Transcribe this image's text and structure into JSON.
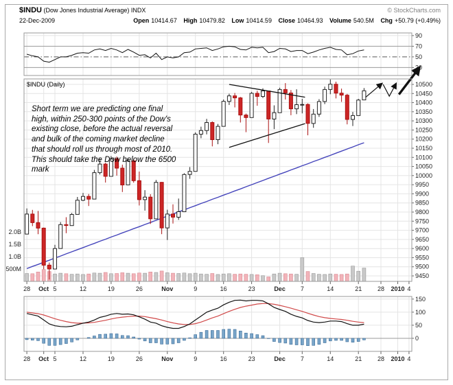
{
  "header": {
    "symbol": "$INDU",
    "name": "(Dow Jones Industrial Average) INDX",
    "date": "22-Dec-2009",
    "copyright": "© StockCharts.com",
    "quote": [
      {
        "label": "Open",
        "value": "10414.67"
      },
      {
        "label": "High",
        "value": "10479.82"
      },
      {
        "label": "Low",
        "value": "10414.59"
      },
      {
        "label": "Close",
        "value": "10464.93"
      },
      {
        "label": "Volume",
        "value": "540.5M"
      },
      {
        "label": "Chg",
        "value": "+50.79 (+0.49%)"
      }
    ]
  },
  "main_label": "$INDU (Daily)",
  "annotation": "Short term we are predicting one final\nhigh, within 250-300 points of the Dow's\nexisting close, before the actual reversal\nand bulk of the coming market decline\nthat should roll us through most of 2010.\nThis should take the Dow below the 6500\nmark",
  "colors": {
    "up_stroke": "#222222",
    "up_fill": "#ffffff",
    "down_stroke": "#aa1111",
    "down_fill": "#cc2626",
    "ma": "#4444bb",
    "vol_up_fill": "#c9c9c9",
    "vol_up_stroke": "#9a9a9a",
    "vol_down_fill": "#f2b4ba",
    "vol_down_stroke": "#d98890",
    "rsi_line": "#111111",
    "macd_line": "#111111",
    "signal_line": "#d04848",
    "hist_fill": "#79a5c9",
    "hist_stroke": "#3c6d99",
    "grid": "#e4e4e4",
    "panel_border": "#999999",
    "annotation_ink": "#111111"
  },
  "chart_data": {
    "type": "candlestick",
    "title": "$INDU (Dow Jones Industrial Average) INDX - Daily",
    "x_total_slots": 69,
    "x_ticks": [
      {
        "label": "28",
        "i": 0,
        "bold": false
      },
      {
        "label": "Oct",
        "i": 3,
        "bold": true
      },
      {
        "label": "5",
        "i": 5,
        "bold": false
      },
      {
        "label": "12",
        "i": 10,
        "bold": false
      },
      {
        "label": "19",
        "i": 15,
        "bold": false
      },
      {
        "label": "26",
        "i": 20,
        "bold": false
      },
      {
        "label": "Nov",
        "i": 25,
        "bold": true
      },
      {
        "label": "9",
        "i": 30,
        "bold": false
      },
      {
        "label": "16",
        "i": 35,
        "bold": false
      },
      {
        "label": "23",
        "i": 40,
        "bold": false
      },
      {
        "label": "Dec",
        "i": 45,
        "bold": true
      },
      {
        "label": "7",
        "i": 49,
        "bold": false
      },
      {
        "label": "14",
        "i": 54,
        "bold": false
      },
      {
        "label": "21",
        "i": 59,
        "bold": false
      },
      {
        "label": "28",
        "i": 63,
        "bold": false
      },
      {
        "label": "2010",
        "i": 66,
        "bold": true
      },
      {
        "label": "4",
        "i": 68,
        "bold": false
      }
    ],
    "price": {
      "ylim": [
        9420,
        10530
      ],
      "scale_ticks": [
        10500,
        10450,
        10400,
        10350,
        10300,
        10250,
        10200,
        10150,
        10100,
        10050,
        10000,
        9950,
        9900,
        9850,
        9800,
        9750,
        9700,
        9650,
        9600,
        9550,
        9500,
        9450
      ],
      "candles": [
        [
          9679,
          9820,
          9679,
          9789
        ],
        [
          9789,
          9812,
          9723,
          9742
        ],
        [
          9742,
          9806,
          9679,
          9712
        ],
        [
          9712,
          9715,
          9487,
          9509
        ],
        [
          9509,
          9523,
          9430,
          9488
        ],
        [
          9488,
          9620,
          9488,
          9600
        ],
        [
          9600,
          9745,
          9600,
          9731
        ],
        [
          9731,
          9772,
          9684,
          9726
        ],
        [
          9726,
          9795,
          9726,
          9787
        ],
        [
          9787,
          9883,
          9787,
          9865
        ],
        [
          9865,
          9905,
          9860,
          9886
        ],
        [
          9886,
          9899,
          9833,
          9871
        ],
        [
          9871,
          10031,
          9871,
          10016
        ],
        [
          10016,
          10093,
          10006,
          10063
        ],
        [
          10063,
          10071,
          9962,
          9996
        ],
        [
          9996,
          10107,
          9996,
          10092
        ],
        [
          10092,
          10104,
          10000,
          10041
        ],
        [
          10041,
          10060,
          9910,
          9949
        ],
        [
          9949,
          10096,
          9949,
          10081
        ],
        [
          10081,
          10092,
          9961,
          9972
        ],
        [
          9972,
          10022,
          9836,
          9868
        ],
        [
          9868,
          9920,
          9808,
          9882
        ],
        [
          9882,
          9898,
          9735,
          9763
        ],
        [
          9763,
          9976,
          9763,
          9963
        ],
        [
          9963,
          9965,
          9679,
          9713
        ],
        [
          9713,
          9813,
          9647,
          9789
        ],
        [
          9789,
          9842,
          9737,
          9772
        ],
        [
          9772,
          9874,
          9757,
          9802
        ],
        [
          9802,
          10013,
          9802,
          10006
        ],
        [
          10006,
          10047,
          9982,
          10023
        ],
        [
          10023,
          10237,
          10023,
          10227
        ],
        [
          10227,
          10268,
          10205,
          10247
        ],
        [
          10247,
          10311,
          10226,
          10291
        ],
        [
          10291,
          10297,
          10160,
          10197
        ],
        [
          10197,
          10283,
          10172,
          10270
        ],
        [
          10270,
          10417,
          10270,
          10407
        ],
        [
          10407,
          10449,
          10387,
          10437
        ],
        [
          10437,
          10453,
          10374,
          10426
        ],
        [
          10426,
          10431,
          10291,
          10332
        ],
        [
          10332,
          10340,
          10238,
          10318
        ],
        [
          10318,
          10459,
          10318,
          10451
        ],
        [
          10451,
          10465,
          10383,
          10434
        ],
        [
          10434,
          10479,
          10425,
          10464
        ],
        [
          10464,
          10464,
          10179,
          10310
        ],
        [
          10310,
          10385,
          10255,
          10345
        ],
        [
          10345,
          10482,
          10345,
          10472
        ],
        [
          10472,
          10507,
          10417,
          10453
        ],
        [
          10453,
          10469,
          10331,
          10366
        ],
        [
          10366,
          10473,
          10337,
          10389
        ],
        [
          10389,
          10421,
          10341,
          10390
        ],
        [
          10390,
          10396,
          10221,
          10286
        ],
        [
          10286,
          10365,
          10262,
          10337
        ],
        [
          10337,
          10419,
          10322,
          10406
        ],
        [
          10406,
          10488,
          10392,
          10472
        ],
        [
          10472,
          10527,
          10446,
          10501
        ],
        [
          10501,
          10515,
          10423,
          10452
        ],
        [
          10452,
          10477,
          10404,
          10441
        ],
        [
          10441,
          10448,
          10281,
          10308
        ],
        [
          10308,
          10349,
          10272,
          10329
        ],
        [
          10329,
          10421,
          10329,
          10414
        ],
        [
          10415,
          10480,
          10415,
          10465
        ]
      ]
    },
    "ma50": [
      9490,
      9502,
      9513,
      9525,
      9536,
      9548,
      9559,
      9571,
      9582,
      9594,
      9605,
      9617,
      9628,
      9640,
      9651,
      9663,
      9674,
      9686,
      9697,
      9709,
      9720,
      9732,
      9743,
      9755,
      9766,
      9778,
      9789,
      9801,
      9812,
      9824,
      9835,
      9847,
      9858,
      9870,
      9881,
      9893,
      9904,
      9916,
      9927,
      9939,
      9950,
      9962,
      9973,
      9985,
      9996,
      10008,
      10019,
      10031,
      10042,
      10054,
      10065,
      10077,
      10088,
      10100,
      10111,
      10123,
      10134,
      10146,
      10157,
      10169,
      10180
    ],
    "volume": {
      "scale_labels": [
        "2.0B",
        "1.5B",
        "1.0B",
        "500M"
      ],
      "scale_values_m": [
        2000,
        1500,
        1000,
        500
      ],
      "bars_m": [
        320,
        310,
        380,
        480,
        400,
        300,
        330,
        310,
        290,
        300,
        280,
        300,
        340,
        330,
        360,
        310,
        320,
        350,
        330,
        310,
        340,
        330,
        380,
        360,
        420,
        350,
        330,
        320,
        340,
        310,
        330,
        300,
        290,
        320,
        280,
        300,
        310,
        290,
        300,
        290,
        280,
        270,
        230,
        180,
        300,
        330,
        310,
        300,
        290,
        960,
        400,
        320,
        290,
        280,
        300,
        290,
        280,
        300,
        620,
        410,
        540
      ]
    },
    "rsi": {
      "ylim": [
        15,
        95
      ],
      "scale_ticks": [
        90,
        70,
        50,
        30
      ],
      "overbought": 70,
      "midline": 50,
      "oversold": 30,
      "values": [
        55,
        52,
        50,
        42,
        40,
        45,
        50,
        50,
        53,
        57,
        58,
        57,
        63,
        65,
        62,
        66,
        63,
        58,
        64,
        59,
        53,
        54,
        48,
        57,
        45,
        50,
        48,
        50,
        58,
        59,
        65,
        66,
        67,
        62,
        65,
        69,
        70,
        69,
        64,
        63,
        68,
        67,
        68,
        58,
        60,
        66,
        65,
        60,
        62,
        62,
        56,
        59,
        63,
        66,
        68,
        64,
        63,
        54,
        56,
        61,
        63
      ]
    },
    "macd": {
      "ylim": [
        -50,
        160
      ],
      "scale_ticks": [
        150,
        100,
        50,
        0
      ],
      "macd": [
        95,
        90,
        85,
        70,
        55,
        48,
        45,
        44,
        46,
        52,
        58,
        62,
        70,
        80,
        85,
        92,
        95,
        92,
        93,
        90,
        82,
        73,
        62,
        58,
        48,
        42,
        38,
        38,
        45,
        55,
        70,
        85,
        100,
        108,
        115,
        128,
        138,
        145,
        146,
        143,
        145,
        145,
        143,
        132,
        118,
        110,
        103,
        92,
        84,
        78,
        68,
        62,
        60,
        62,
        66,
        66,
        64,
        56,
        50,
        50,
        54
      ],
      "signal": [
        100,
        97,
        94,
        89,
        82,
        75,
        69,
        64,
        60,
        58,
        58,
        59,
        61,
        65,
        69,
        74,
        78,
        81,
        83,
        85,
        85,
        83,
        79,
        75,
        70,
        64,
        59,
        55,
        53,
        53,
        56,
        62,
        70,
        78,
        85,
        94,
        103,
        111,
        118,
        123,
        127,
        131,
        133,
        133,
        130,
        126,
        121,
        115,
        109,
        103,
        96,
        89,
        83,
        79,
        76,
        74,
        72,
        69,
        65,
        62,
        60
      ]
    },
    "trendlines": [
      [
        [
          36,
          10500
        ],
        [
          49.5,
          10430
        ]
      ],
      [
        [
          36,
          10155
        ],
        [
          49.5,
          10285
        ]
      ]
    ],
    "projection_arrows": {
      "thin": [
        [
          [
            60.3,
            10430
          ],
          [
            63.2,
            10505
          ]
        ],
        [
          [
            63.4,
            10500
          ],
          [
            64.5,
            10435
          ],
          [
            65.7,
            10505
          ]
        ]
      ],
      "bold": [
        [
          66.2,
          10445
        ],
        [
          69.8,
          10590
        ]
      ]
    }
  }
}
